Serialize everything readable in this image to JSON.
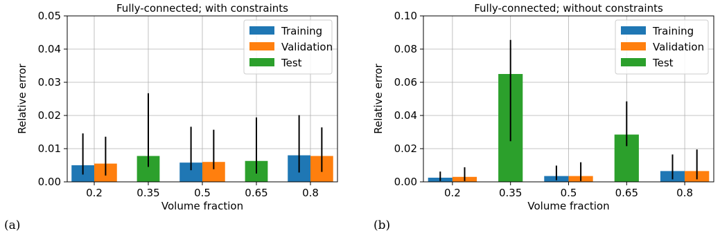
{
  "colors": {
    "training": "#1f77b4",
    "validation": "#ff7f0e",
    "test": "#2ca02c",
    "grid": "#b0b0b0",
    "errorbar": "#000000"
  },
  "chart_data": [
    {
      "type": "bar",
      "panel_label": "(a)",
      "title": "Fully-connected; with constraints",
      "xlabel": "Volume fraction",
      "ylabel": "Relative error",
      "ylim": [
        0,
        0.05
      ],
      "yticks": [
        "0.00",
        "0.01",
        "0.02",
        "0.03",
        "0.04",
        "0.05"
      ],
      "categories": [
        "0.2",
        "0.35",
        "0.5",
        "0.65",
        "0.8"
      ],
      "grid": true,
      "legend_position": "top-right",
      "series": [
        {
          "name": "Training",
          "color_key": "training",
          "values": [
            0.005,
            null,
            0.0058,
            null,
            0.008
          ],
          "err_low": [
            0.0022,
            null,
            0.0035,
            null,
            0.0028
          ],
          "err_high": [
            0.0146,
            null,
            0.0166,
            null,
            0.0201
          ]
        },
        {
          "name": "Validation",
          "color_key": "validation",
          "values": [
            0.0055,
            null,
            0.006,
            null,
            0.0078
          ],
          "err_low": [
            0.0019,
            null,
            0.0038,
            null,
            0.003
          ],
          "err_high": [
            0.0136,
            null,
            0.0157,
            null,
            0.0164
          ]
        },
        {
          "name": "Test",
          "color_key": "test",
          "values": [
            null,
            0.0078,
            null,
            0.0063,
            null
          ],
          "err_low": [
            null,
            0.0045,
            null,
            0.0025,
            null
          ],
          "err_high": [
            null,
            0.0267,
            null,
            0.0194,
            null
          ]
        }
      ]
    },
    {
      "type": "bar",
      "panel_label": "(b)",
      "title": "Fully-connected; without constraints",
      "xlabel": "Volume fraction",
      "ylabel": "Relative error",
      "ylim": [
        0,
        0.1
      ],
      "yticks": [
        "0.00",
        "0.02",
        "0.04",
        "0.06",
        "0.08",
        "0.10"
      ],
      "categories": [
        "0.2",
        "0.35",
        "0.5",
        "0.65",
        "0.8"
      ],
      "grid": true,
      "legend_position": "top-right",
      "series": [
        {
          "name": "Training",
          "color_key": "training",
          "values": [
            0.0025,
            null,
            0.0035,
            null,
            0.0065
          ],
          "err_low": [
            0.0005,
            null,
            0.001,
            null,
            0.0015
          ],
          "err_high": [
            0.0062,
            null,
            0.0098,
            null,
            0.0165
          ]
        },
        {
          "name": "Validation",
          "color_key": "validation",
          "values": [
            0.003,
            null,
            0.0035,
            null,
            0.0065
          ],
          "err_low": [
            0.0005,
            null,
            0.0005,
            null,
            0.0015
          ],
          "err_high": [
            0.0088,
            null,
            0.0118,
            null,
            0.0195
          ]
        },
        {
          "name": "Test",
          "color_key": "test",
          "values": [
            null,
            0.065,
            null,
            0.0285,
            null
          ],
          "err_low": [
            null,
            0.0245,
            null,
            0.0215,
            null
          ],
          "err_high": [
            null,
            0.0855,
            null,
            0.0485,
            null
          ]
        }
      ]
    }
  ]
}
